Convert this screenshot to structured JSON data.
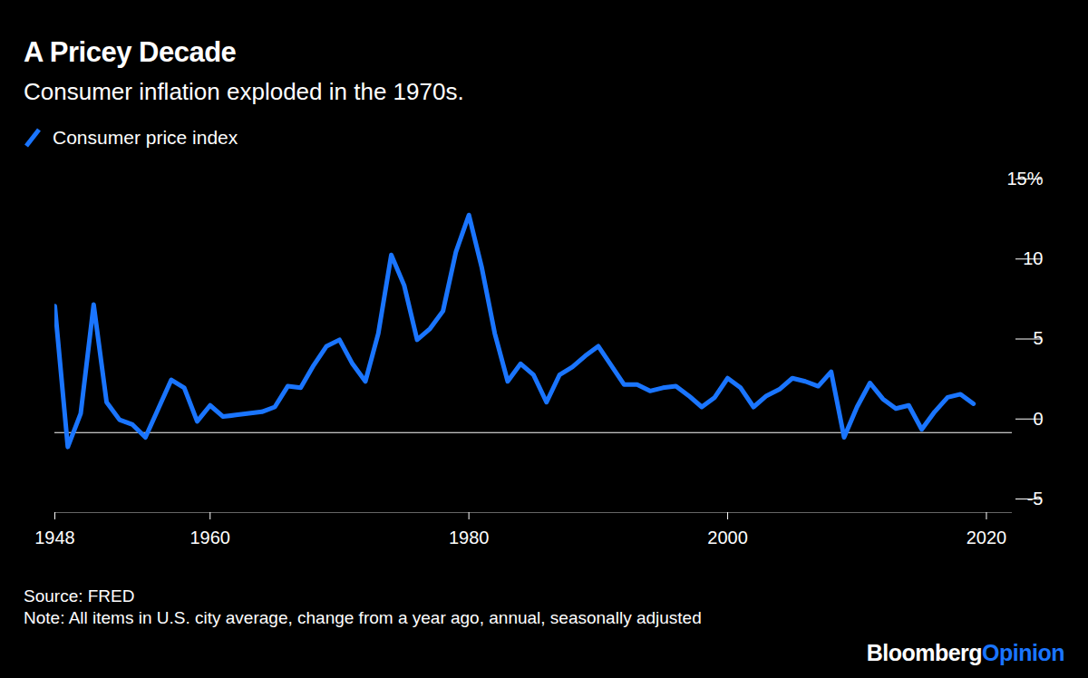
{
  "chart_data": {
    "type": "line",
    "title": "A Pricey Decade",
    "subtitle": "Consumer inflation exploded in the 1970s.",
    "x": [
      1948,
      1949,
      1950,
      1951,
      1952,
      1953,
      1954,
      1955,
      1956,
      1957,
      1958,
      1959,
      1960,
      1961,
      1962,
      1963,
      1964,
      1965,
      1966,
      1967,
      1968,
      1969,
      1970,
      1971,
      1972,
      1973,
      1974,
      1975,
      1976,
      1977,
      1978,
      1979,
      1980,
      1981,
      1982,
      1983,
      1984,
      1985,
      1986,
      1987,
      1988,
      1989,
      1990,
      1991,
      1992,
      1993,
      1994,
      1995,
      1996,
      1997,
      1998,
      1999,
      2000,
      2001,
      2002,
      2003,
      2004,
      2005,
      2006,
      2007,
      2008,
      2009,
      2010,
      2011,
      2012,
      2013,
      2014,
      2015,
      2016,
      2017,
      2018,
      2019
    ],
    "series": [
      {
        "name": "Consumer price index",
        "color": "#1a75ff",
        "values": [
          7.9,
          -0.9,
          1.2,
          8.0,
          1.9,
          0.8,
          0.5,
          -0.3,
          1.5,
          3.3,
          2.8,
          0.7,
          1.7,
          1.0,
          1.1,
          1.2,
          1.3,
          1.6,
          2.9,
          2.8,
          4.2,
          5.4,
          5.8,
          4.3,
          3.2,
          6.2,
          11.1,
          9.2,
          5.8,
          6.5,
          7.6,
          11.3,
          13.6,
          10.3,
          6.2,
          3.2,
          4.3,
          3.6,
          1.9,
          3.6,
          4.1,
          4.8,
          5.4,
          4.2,
          3.0,
          3.0,
          2.6,
          2.8,
          2.9,
          2.3,
          1.6,
          2.2,
          3.4,
          2.8,
          1.6,
          2.3,
          2.7,
          3.4,
          3.2,
          2.9,
          3.8,
          -0.3,
          1.6,
          3.1,
          2.1,
          1.5,
          1.7,
          0.2,
          1.3,
          2.2,
          2.4,
          1.8
        ]
      }
    ],
    "xlim": [
      1948,
      2022
    ],
    "xticks": [
      1948,
      1960,
      1980,
      2000,
      2020
    ],
    "ylim": [
      -5,
      15
    ],
    "yticks": [
      -5,
      0,
      5,
      10,
      {
        "value": 15,
        "label": "15%"
      }
    ],
    "grid": false,
    "legend": "top-left",
    "source": "Source: FRED",
    "note": "Note: All items in U.S. city average, change from a year ago, annual, seasonally adjusted",
    "branding": {
      "text": "Bloomberg",
      "accent": "Opinion"
    }
  }
}
